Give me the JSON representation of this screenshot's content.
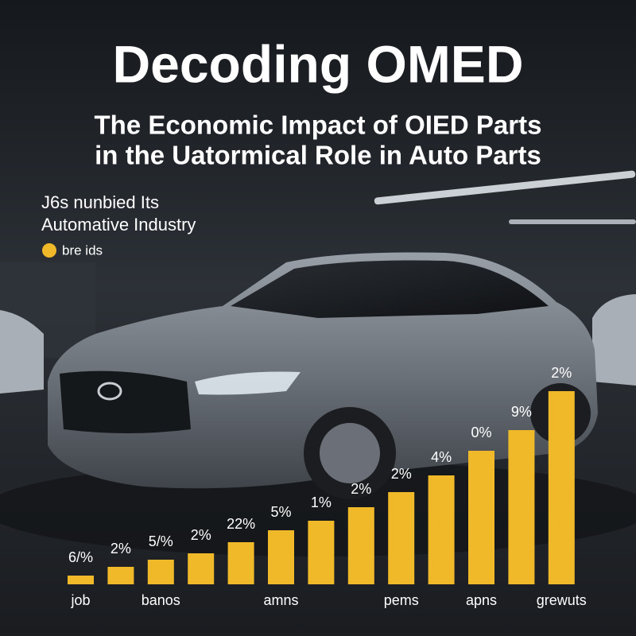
{
  "title": "Decoding OMED",
  "subtitle": [
    "The Economic Impact of OIED Parts",
    "in the Uatormical Role in Auto Parts"
  ],
  "note": [
    "J6s nunbied Its",
    "Automative Industry"
  ],
  "chart_data": {
    "type": "bar",
    "categories": [
      "job",
      null,
      "banos",
      null,
      null,
      "amns",
      null,
      null,
      "pems",
      null,
      "apns",
      null,
      "grewuts"
    ],
    "values": [
      11,
      22,
      31,
      39,
      53,
      68,
      80,
      97,
      116,
      137,
      168,
      194,
      243
    ],
    "value_labels": [
      "6/%",
      "2%",
      "5/%",
      "2%",
      "22%",
      "5%",
      "1%",
      "2%",
      "2%",
      "4%",
      "0%",
      "9%",
      "2%"
    ],
    "color": "#f0b92a",
    "ylim": [
      0,
      250
    ],
    "legend_label": "bre ids"
  }
}
